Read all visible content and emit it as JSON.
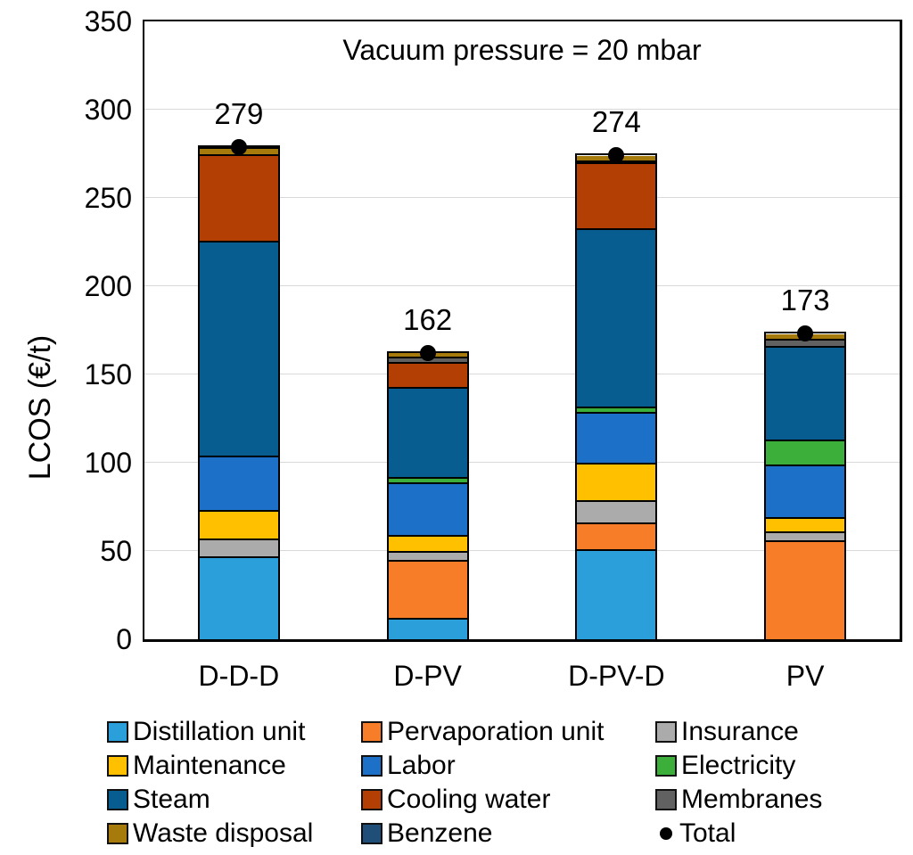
{
  "chart_data": {
    "type": "bar",
    "stacked": true,
    "title": "Vacuum pressure = 20 mbar",
    "xlabel": "",
    "ylabel": "LCOS (€/t)",
    "categories": [
      "D-D-D",
      "D-PV",
      "D-PV-D",
      "PV"
    ],
    "ylim": [
      0,
      350
    ],
    "yticks": [
      0,
      50,
      100,
      150,
      200,
      250,
      300,
      350
    ],
    "grid": "horizontal",
    "gridline_color": "#D9D9D9",
    "legend_position": "bottom",
    "series": [
      {
        "name": "Distillation unit",
        "color": "#2B9FD9",
        "values": [
          46,
          11,
          50,
          0
        ]
      },
      {
        "name": "Pervaporation unit",
        "color": "#F87D28",
        "values": [
          0,
          33,
          15,
          55
        ]
      },
      {
        "name": "Insurance",
        "color": "#ABABAB",
        "values": [
          10,
          5,
          13,
          5
        ]
      },
      {
        "name": "Maintenance",
        "color": "#FFC000",
        "values": [
          16,
          9,
          21,
          8
        ]
      },
      {
        "name": "Labor",
        "color": "#1C70C8",
        "values": [
          31,
          30,
          29,
          30
        ]
      },
      {
        "name": "Electricity",
        "color": "#3CAE3A",
        "values": [
          0,
          3,
          3,
          14
        ]
      },
      {
        "name": "Steam",
        "color": "#075C90",
        "values": [
          122,
          51,
          101,
          53
        ]
      },
      {
        "name": "Cooling water",
        "color": "#B33F05",
        "values": [
          49,
          14,
          37,
          0
        ]
      },
      {
        "name": "Membranes",
        "color": "#616161",
        "values": [
          0,
          3,
          1,
          4
        ]
      },
      {
        "name": "Waste disposal",
        "color": "#A67B0B",
        "values": [
          4,
          3,
          4,
          4
        ]
      },
      {
        "name": "Benzene",
        "color": "#1F4E79",
        "values": [
          1,
          0,
          0,
          0
        ]
      }
    ],
    "totals": {
      "name": "Total",
      "marker": "dot",
      "color": "#000000",
      "values": [
        279,
        162,
        274,
        173
      ]
    }
  }
}
